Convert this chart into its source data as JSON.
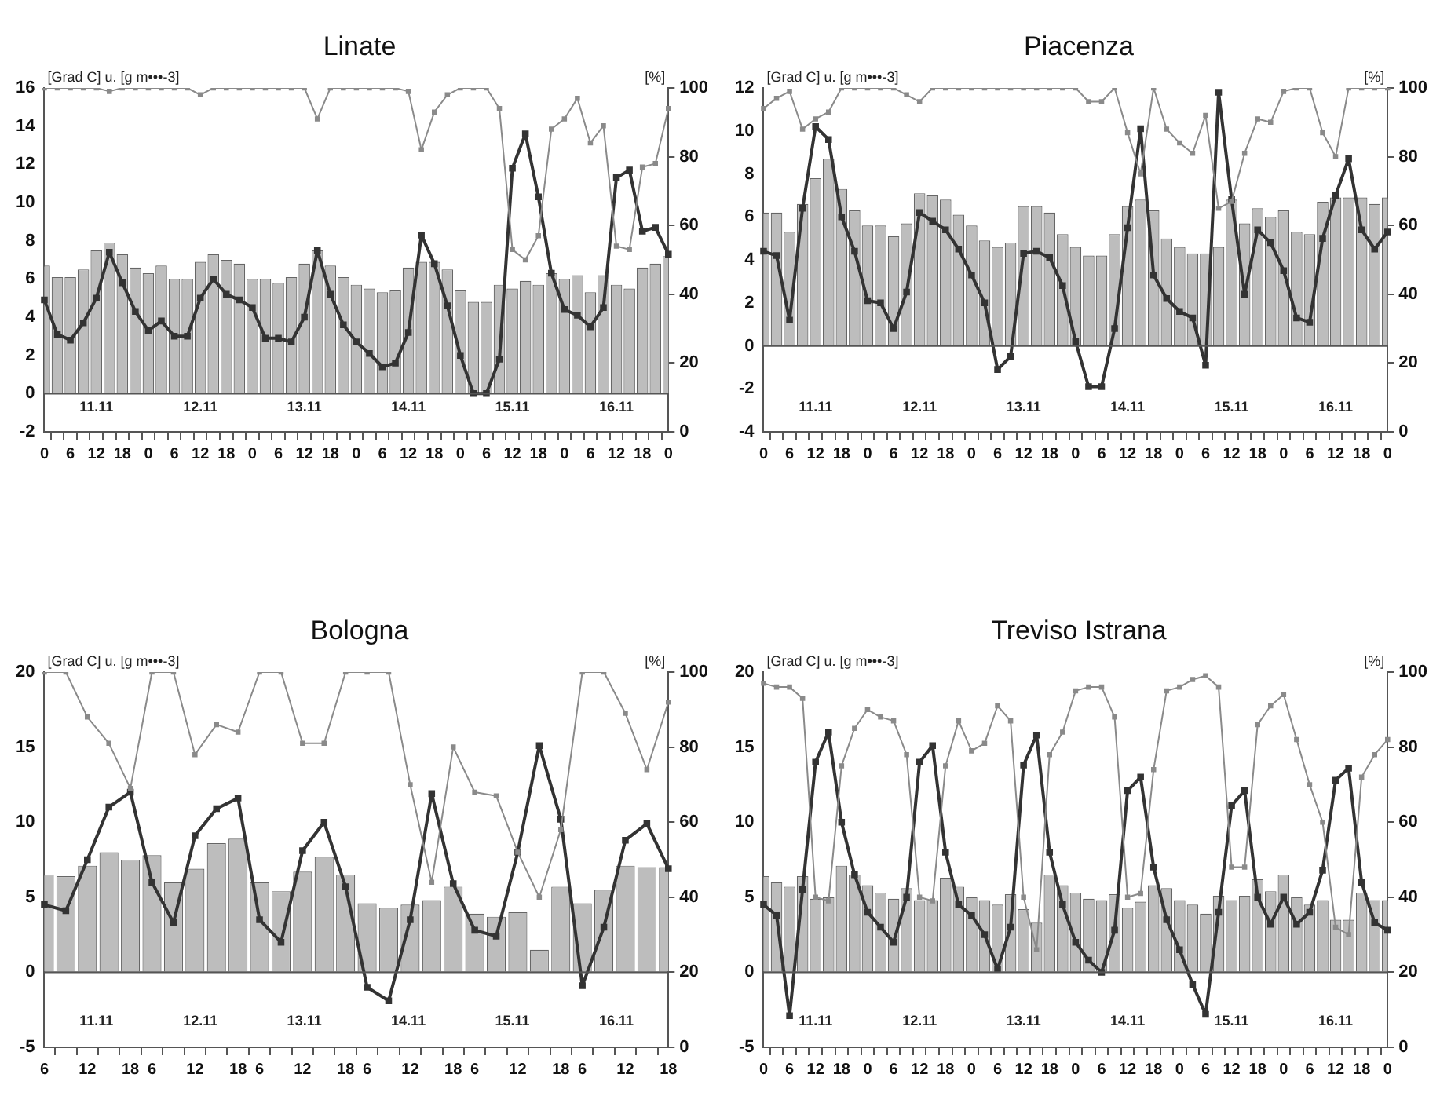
{
  "chart_data": [
    {
      "type": "bar",
      "title": "Linate",
      "ylabel": "[Grad C] u. [g m•••-3]",
      "y2label": "[%]",
      "marker": "square",
      "categories": [
        "0",
        null,
        "6",
        null,
        "12",
        null,
        "18",
        null,
        "0",
        null,
        "6",
        null,
        "12",
        null,
        "18",
        null,
        "0",
        null,
        "6",
        null,
        "12",
        null,
        "18",
        null,
        "0",
        null,
        "6",
        null,
        "12",
        null,
        "18",
        null,
        "0",
        null,
        "6",
        null,
        "12",
        null,
        "18",
        null,
        "0",
        null,
        "6",
        null,
        "12",
        null,
        "18",
        null,
        "0"
      ],
      "series": [
        {
          "color": "#bdbdbd",
          "values": [
            6.7,
            6.1,
            6.1,
            6.5,
            7.5,
            7.9,
            7.3,
            6.6,
            6.3,
            6.7,
            6.0,
            6.0,
            6.9,
            7.3,
            7.0,
            6.8,
            6.0,
            6.0,
            5.8,
            6.1,
            6.8,
            7.5,
            6.7,
            6.1,
            5.7,
            5.5,
            5.3,
            5.4,
            6.6,
            6.9,
            6.9,
            6.5,
            5.4,
            4.8,
            4.8,
            5.7,
            5.5,
            5.9,
            5.7,
            6.3,
            6.0,
            6.2,
            5.3,
            6.2,
            5.7,
            5.5,
            6.6,
            6.8,
            7.2
          ]
        },
        {
          "type": "line",
          "color": "#333333",
          "values": [
            4.9,
            3.1,
            2.8,
            3.7,
            5.0,
            7.4,
            5.8,
            4.3,
            3.3,
            3.8,
            3.0,
            3.0,
            5.0,
            6.0,
            5.2,
            4.9,
            4.5,
            2.9,
            2.9,
            2.7,
            4.0,
            7.5,
            5.2,
            3.6,
            2.7,
            2.1,
            1.4,
            1.6,
            3.2,
            8.3,
            6.8,
            4.6,
            2.0,
            0,
            0,
            1.8,
            11.8,
            13.6,
            10.3,
            6.3,
            4.4,
            4.1,
            3.5,
            4.5,
            11.3,
            11.7,
            8.5,
            8.7,
            7.3
          ]
        },
        {
          "type": "line",
          "axis": "y2",
          "color": "#8a8a8a",
          "values": [
            100,
            100,
            100,
            100,
            100,
            99,
            100,
            100,
            100,
            100,
            100,
            100,
            98,
            100,
            100,
            100,
            100,
            100,
            100,
            100,
            100,
            91,
            100,
            100,
            100,
            100,
            100,
            100,
            99,
            82,
            93,
            98,
            100,
            100,
            100,
            94,
            53,
            50,
            57,
            88,
            91,
            97,
            84,
            89,
            54,
            53,
            77,
            78,
            94
          ]
        }
      ],
      "ylim": [
        -2,
        16
      ],
      "yticks": [
        -2,
        0,
        2,
        4,
        6,
        8,
        10,
        12,
        14,
        16
      ],
      "y2lim": [
        0,
        100
      ],
      "y2ticks": [
        0,
        20,
        40,
        60,
        80,
        100
      ],
      "ref_lines": [
        {
          "axis": "y",
          "value": 0
        }
      ],
      "annotations": [
        "11.11",
        "12.11",
        "13.11",
        "14.11",
        "15.11",
        "16.11"
      ]
    },
    {
      "type": "bar",
      "title": "Piacenza",
      "ylabel": "[Grad C] u. [g m•••-3]",
      "y2label": "[%]",
      "marker": "square",
      "categories": [
        "0",
        null,
        "6",
        null,
        "12",
        null,
        "18",
        null,
        "0",
        null,
        "6",
        null,
        "12",
        null,
        "18",
        null,
        "0",
        null,
        "6",
        null,
        "12",
        null,
        "18",
        null,
        "0",
        null,
        "6",
        null,
        "12",
        null,
        "18",
        null,
        "0",
        null,
        "6",
        null,
        "12",
        null,
        "18",
        null,
        "0",
        null,
        "6",
        null,
        "12",
        null,
        "18",
        null,
        "0"
      ],
      "series": [
        {
          "color": "#bdbdbd",
          "values": [
            6.2,
            6.2,
            5.3,
            6.6,
            7.8,
            8.7,
            7.3,
            6.3,
            5.6,
            5.6,
            5.1,
            5.7,
            7.1,
            7.0,
            6.8,
            6.1,
            5.6,
            4.9,
            4.6,
            4.8,
            6.5,
            6.5,
            6.2,
            5.2,
            4.6,
            4.2,
            4.2,
            5.2,
            6.5,
            6.8,
            6.3,
            5.0,
            4.6,
            4.3,
            4.3,
            4.6,
            6.8,
            5.7,
            6.4,
            6.0,
            6.3,
            5.3,
            5.2,
            6.7,
            6.9,
            6.9,
            6.9,
            6.6,
            6.9
          ]
        },
        {
          "type": "line",
          "color": "#333333",
          "values": [
            4.4,
            4.2,
            1.2,
            6.4,
            10.2,
            9.6,
            6.0,
            4.4,
            2.1,
            2.0,
            0.8,
            2.5,
            6.2,
            5.8,
            5.4,
            4.5,
            3.3,
            2.0,
            -1.1,
            -0.5,
            4.3,
            4.4,
            4.1,
            2.8,
            0.2,
            -1.9,
            -1.9,
            0.8,
            5.5,
            10.1,
            3.3,
            2.2,
            1.6,
            1.3,
            -0.9,
            11.8,
            6.8,
            2.4,
            5.4,
            4.8,
            3.5,
            1.3,
            1.1,
            5.0,
            7.0,
            8.7,
            5.4,
            4.5,
            5.3
          ]
        },
        {
          "type": "line",
          "axis": "y2",
          "color": "#8a8a8a",
          "values": [
            94,
            97,
            99,
            88,
            91,
            93,
            100,
            100,
            100,
            100,
            100,
            98,
            96,
            100,
            100,
            100,
            100,
            100,
            100,
            100,
            100,
            100,
            100,
            100,
            100,
            96,
            96,
            100,
            87,
            75,
            100,
            88,
            84,
            81,
            92,
            65,
            67,
            81,
            91,
            90,
            99,
            100,
            100,
            87,
            80,
            100,
            100,
            100,
            100
          ]
        }
      ],
      "ylim": [
        -4,
        12
      ],
      "yticks": [
        -4,
        -2,
        0,
        2,
        4,
        6,
        8,
        10,
        12
      ],
      "y2lim": [
        0,
        100
      ],
      "y2ticks": [
        0,
        20,
        40,
        60,
        80,
        100
      ],
      "ref_lines": [
        {
          "axis": "y",
          "value": 0
        }
      ],
      "annotations": [
        "11.11",
        "12.11",
        "13.11",
        "14.11",
        "15.11",
        "16.11"
      ]
    },
    {
      "type": "bar",
      "title": "Bologna",
      "ylabel": "[Grad C] u. [g m•••-3]",
      "y2label": "[%]",
      "marker": "square",
      "categories": [
        "6",
        null,
        "12",
        null,
        "18",
        "6",
        null,
        "12",
        null,
        "18",
        "6",
        null,
        "12",
        null,
        "18",
        "6",
        null,
        "12",
        null,
        "18",
        "6",
        null,
        "12",
        null,
        "18",
        "6",
        null,
        "12",
        null,
        "18"
      ],
      "series": [
        {
          "color": "#bdbdbd",
          "values": [
            6.5,
            6.4,
            7.1,
            8.0,
            7.5,
            7.8,
            6.0,
            6.9,
            8.6,
            8.9,
            6.0,
            5.4,
            6.7,
            7.7,
            6.5,
            4.6,
            4.3,
            4.5,
            4.8,
            5.7,
            3.9,
            3.7,
            4.0,
            1.5,
            5.7,
            4.6,
            5.5,
            7.1,
            7.0,
            7.0
          ]
        },
        {
          "type": "line",
          "color": "#333333",
          "values": [
            4.5,
            4.1,
            7.5,
            11.0,
            12.0,
            6.0,
            3.3,
            9.1,
            10.9,
            11.6,
            3.5,
            2.0,
            8.1,
            10.0,
            5.7,
            -1.0,
            -1.9,
            3.5,
            11.9,
            5.9,
            2.8,
            2.4,
            8.0,
            15.1,
            10.2,
            -0.9,
            3.0,
            8.8,
            9.9,
            6.9
          ]
        },
        {
          "type": "line",
          "axis": "y2",
          "color": "#8a8a8a",
          "values": [
            100,
            100,
            88,
            81,
            69,
            100,
            100,
            78,
            86,
            84,
            100,
            100,
            81,
            81,
            100,
            100,
            100,
            70,
            44,
            80,
            68,
            67,
            52,
            40,
            58,
            100,
            100,
            89,
            74,
            92
          ]
        }
      ],
      "ylim": [
        -5,
        20
      ],
      "yticks": [
        -5,
        0,
        5,
        10,
        15,
        20
      ],
      "y2lim": [
        0,
        100
      ],
      "y2ticks": [
        0,
        20,
        40,
        60,
        80,
        100
      ],
      "ref_lines": [
        {
          "axis": "y",
          "value": 0
        }
      ],
      "annotations": [
        "11.11",
        "12.11",
        "13.11",
        "14.11",
        "15.11",
        "16.11"
      ]
    },
    {
      "type": "bar",
      "title": "Treviso Istrana",
      "ylabel": "[Grad C] u. [g m•••-3]",
      "y2label": "[%]",
      "marker": "square",
      "categories": [
        "0",
        null,
        "6",
        null,
        "12",
        null,
        "18",
        null,
        "0",
        null,
        "6",
        null,
        "12",
        null,
        "18",
        null,
        "0",
        null,
        "6",
        null,
        "12",
        null,
        "18",
        null,
        "0",
        null,
        "6",
        null,
        "12",
        null,
        "18",
        null,
        "0",
        null,
        "6",
        null,
        "12",
        null,
        "18",
        null,
        "0",
        null,
        "6",
        null,
        "12",
        null,
        "18",
        null,
        "0"
      ],
      "series": [
        {
          "color": "#bdbdbd",
          "values": [
            6.4,
            6.0,
            5.7,
            6.4,
            4.9,
            5.0,
            7.1,
            6.5,
            5.8,
            5.3,
            4.9,
            5.6,
            4.8,
            4.8,
            6.3,
            5.7,
            5.0,
            4.8,
            4.5,
            5.2,
            4.2,
            3.3,
            6.5,
            5.8,
            5.3,
            4.9,
            4.8,
            5.2,
            4.3,
            4.7,
            5.8,
            5.6,
            4.8,
            4.5,
            3.9,
            5.1,
            4.8,
            5.1,
            6.2,
            5.4,
            6.5,
            5.0,
            4.5,
            4.8,
            3.5,
            3.5,
            5.3,
            4.8,
            4.8
          ]
        },
        {
          "type": "line",
          "color": "#333333",
          "values": [
            4.5,
            3.8,
            -2.9,
            5.5,
            14.0,
            16.0,
            10.0,
            6.5,
            4.0,
            3.0,
            2.0,
            5.0,
            14.0,
            15.1,
            8.0,
            4.5,
            3.8,
            2.5,
            0.2,
            3.0,
            13.8,
            15.8,
            8.0,
            4.5,
            2.0,
            0.8,
            0.0,
            2.8,
            12.1,
            13.0,
            7.0,
            3.5,
            1.5,
            -0.8,
            -2.8,
            4.0,
            11.1,
            12.1,
            5.0,
            3.2,
            5.0,
            3.2,
            4.0,
            6.8,
            12.8,
            13.6,
            6.0,
            3.3,
            2.8
          ]
        },
        {
          "type": "line",
          "axis": "y2",
          "color": "#8a8a8a",
          "values": [
            97,
            96,
            96,
            93,
            40,
            39,
            75,
            85,
            90,
            88,
            87,
            78,
            40,
            39,
            75,
            87,
            79,
            81,
            91,
            87,
            40,
            26,
            78,
            84,
            95,
            96,
            96,
            88,
            40,
            41,
            74,
            95,
            96,
            98,
            99,
            96,
            48,
            48,
            86,
            91,
            94,
            82,
            70,
            60,
            32,
            30,
            72,
            78,
            82
          ]
        }
      ],
      "ylim": [
        -5,
        20
      ],
      "yticks": [
        -5,
        0,
        5,
        10,
        15,
        20
      ],
      "y2lim": [
        0,
        100
      ],
      "y2ticks": [
        0,
        20,
        40,
        60,
        80,
        100
      ],
      "ref_lines": [
        {
          "axis": "y",
          "value": 0
        }
      ],
      "annotations": [
        "11.11",
        "12.11",
        "13.11",
        "14.11",
        "15.11",
        "16.11"
      ]
    }
  ]
}
